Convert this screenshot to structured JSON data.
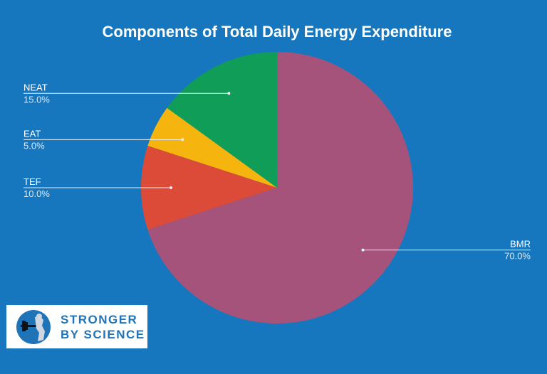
{
  "chart_data": {
    "type": "pie",
    "title": "Components of Total Daily Energy Expenditure",
    "slices": [
      {
        "label": "BMR",
        "value": 70.0,
        "display": "70.0%",
        "color": "#a6537b"
      },
      {
        "label": "TEF",
        "value": 10.0,
        "display": "10.0%",
        "color": "#dc4a38"
      },
      {
        "label": "EAT",
        "value": 5.0,
        "display": "5.0%",
        "color": "#f5b40e"
      },
      {
        "label": "NEAT",
        "value": 15.0,
        "display": "15.0%",
        "color": "#0f9d58"
      }
    ],
    "start_angle_deg": 0,
    "direction": "clockwise",
    "legend": "leader-line labels"
  },
  "logo": {
    "line1": "STRONGER",
    "line2": "BY SCIENCE",
    "color": "#1f74b8"
  },
  "background_color": "#1777be"
}
